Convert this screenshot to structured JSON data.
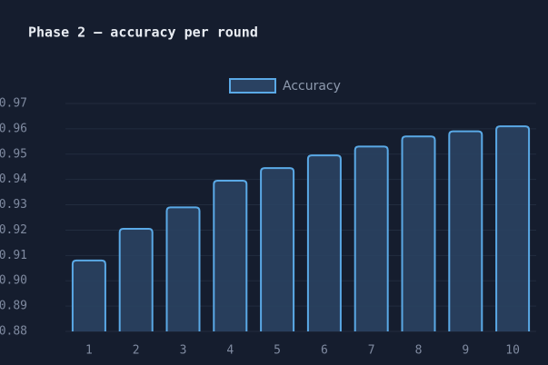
{
  "chart_data": {
    "type": "bar",
    "title": "Phase 2 — accuracy per round",
    "categories": [
      "1",
      "2",
      "3",
      "4",
      "5",
      "6",
      "7",
      "8",
      "9",
      "10"
    ],
    "series": [
      {
        "name": "Accuracy",
        "color": "#5aa9e6",
        "values": [
          0.908,
          0.9205,
          0.929,
          0.9395,
          0.9445,
          0.9495,
          0.953,
          0.957,
          0.959,
          0.961
        ]
      }
    ],
    "ylim": [
      0.88,
      0.97
    ],
    "yticks": [
      0.88,
      0.89,
      {
        "value": 0.9,
        "label": "0.90"
      },
      0.91,
      0.92,
      0.93,
      0.94,
      0.95,
      0.96,
      0.97
    ],
    "grid": true
  }
}
